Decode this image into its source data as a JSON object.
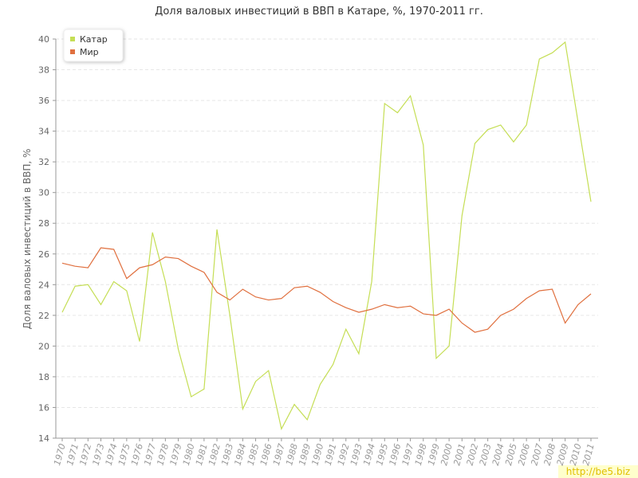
{
  "chart_data": {
    "type": "line",
    "title": "Доля валовых инвестиций в ВВП в Катаре, %, 1970-2011 гг.",
    "y_label": "Доля валовых инвестиций в ВВП, %",
    "watermark": "http://be5.biz",
    "categories": [
      "1970",
      "1971",
      "1972",
      "1973",
      "1974",
      "1975",
      "1976",
      "1977",
      "1978",
      "1979",
      "1980",
      "1981",
      "1982",
      "1983",
      "1984",
      "1985",
      "1986",
      "1987",
      "1988",
      "1989",
      "1990",
      "1991",
      "1992",
      "1993",
      "1994",
      "1995",
      "1996",
      "1997",
      "1998",
      "1999",
      "2000",
      "2001",
      "2002",
      "2003",
      "2004",
      "2005",
      "2006",
      "2007",
      "2008",
      "2009",
      "2010",
      "2011"
    ],
    "series": [
      {
        "name": "Катар",
        "color": "#c5de55",
        "values": [
          22.2,
          23.9,
          24.0,
          22.7,
          24.2,
          23.6,
          20.3,
          27.4,
          24.2,
          19.8,
          16.7,
          17.2,
          27.6,
          22.0,
          15.9,
          17.7,
          18.4,
          14.6,
          16.2,
          15.2,
          17.5,
          18.8,
          21.1,
          19.5,
          24.2,
          35.8,
          35.2,
          36.3,
          33.1,
          19.2,
          20.0,
          28.5,
          33.2,
          34.1,
          34.4,
          33.3,
          34.4,
          38.7,
          39.1,
          39.8,
          34.6,
          29.4
        ]
      },
      {
        "name": "Мир",
        "color": "#e0703f",
        "values": [
          25.4,
          25.2,
          25.1,
          26.4,
          26.3,
          24.4,
          25.1,
          25.3,
          25.8,
          25.7,
          25.2,
          24.8,
          23.5,
          23.0,
          23.7,
          23.2,
          23.0,
          23.1,
          23.8,
          23.9,
          23.5,
          22.9,
          22.5,
          22.2,
          22.4,
          22.7,
          22.5,
          22.6,
          22.1,
          22.0,
          22.4,
          21.5,
          20.9,
          21.1,
          22.0,
          22.4,
          23.1,
          23.6,
          23.7,
          21.5,
          22.7,
          23.4
        ]
      }
    ],
    "ylim": [
      14,
      40
    ],
    "yticks": [
      14,
      16,
      18,
      20,
      22,
      24,
      26,
      28,
      30,
      32,
      34,
      36,
      38,
      40
    ],
    "grid": true,
    "legend": "top-left"
  }
}
